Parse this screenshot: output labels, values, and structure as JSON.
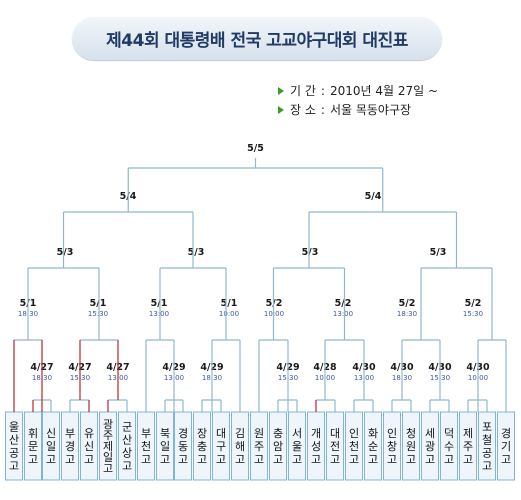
{
  "header": {
    "title": "제44회 대통령배 전국 고교야구대회 대진표"
  },
  "info": {
    "period_label": "기 간",
    "period_value": "2010년 4월 27일 ~",
    "venue_label": "장 소",
    "venue_value": "서울 목동야구장",
    "separator": ":"
  },
  "colors": {
    "line": "#8fb8d0",
    "winner_line": "#b3262f",
    "title_text": "#1f3a66",
    "bullet": "#3d9a2b"
  },
  "teams": [
    "울산공고",
    "휘문고",
    "신일고",
    "부경고",
    "유신고",
    "광주제일고",
    "군산상고",
    "부천고",
    "북일고",
    "경동고",
    "장충고",
    "대구고",
    "김해고",
    "원주고",
    "충암고",
    "서울고",
    "개성고",
    "대전고",
    "인천고",
    "화순고",
    "인창고",
    "청원고",
    "세광고",
    "덕수고",
    "제주고",
    "포철공고",
    "경기고"
  ],
  "rounds": {
    "final": {
      "date": "5/5"
    },
    "semis": [
      {
        "date": "5/4"
      },
      {
        "date": "5/4"
      }
    ],
    "quarters": [
      {
        "date": "5/3"
      },
      {
        "date": "5/3"
      },
      {
        "date": "5/3"
      },
      {
        "date": "5/3"
      }
    ],
    "r16": [
      {
        "date": "5/1",
        "time": "18:30"
      },
      {
        "date": "5/1",
        "time": "15:30"
      },
      {
        "date": "5/1",
        "time": "13:00"
      },
      {
        "date": "5/1",
        "time": "10:00"
      },
      {
        "date": "5/2",
        "time": "10:00"
      },
      {
        "date": "5/2",
        "time": "13:00"
      },
      {
        "date": "5/2",
        "time": "18:30"
      },
      {
        "date": "5/2",
        "time": "15:30"
      }
    ],
    "r32": [
      {
        "date": "4/27",
        "time": "18:30"
      },
      {
        "date": "4/27",
        "time": "15:30"
      },
      {
        "date": "4/27",
        "time": "13:00"
      },
      {
        "date": "4/29",
        "time": "13:00"
      },
      {
        "date": "4/29",
        "time": "18:30"
      },
      {
        "date": "4/29",
        "time": "15:30"
      },
      {
        "date": "4/28",
        "time": "10:00"
      },
      {
        "date": "4/30",
        "time": "13:00"
      },
      {
        "date": "4/30",
        "time": "18:30"
      },
      {
        "date": "4/30",
        "time": "15:30"
      },
      {
        "date": "4/30",
        "time": "10:00"
      }
    ]
  }
}
